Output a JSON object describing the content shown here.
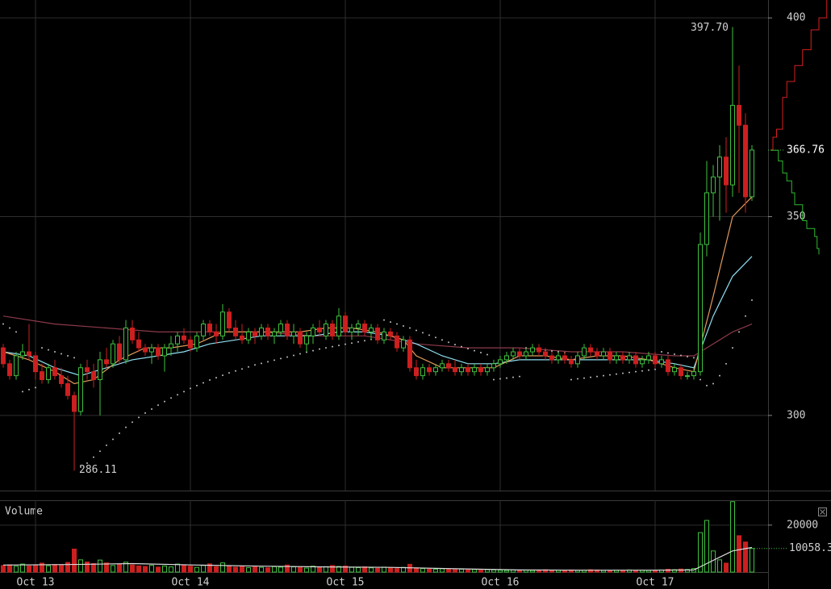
{
  "chart_data": [
    {
      "type": "candlestick",
      "categories": [
        null,
        null,
        null,
        null,
        null,
        "Oct 13",
        null,
        null,
        null,
        null,
        null,
        null,
        null,
        null,
        null,
        null,
        null,
        null,
        null,
        null,
        null,
        null,
        null,
        null,
        null,
        null,
        null,
        null,
        null,
        "Oct 14",
        null,
        null,
        null,
        null,
        null,
        null,
        null,
        null,
        null,
        null,
        null,
        null,
        null,
        null,
        null,
        null,
        null,
        null,
        null,
        null,
        null,
        null,
        null,
        "Oct 15",
        null,
        null,
        null,
        null,
        null,
        null,
        null,
        null,
        null,
        null,
        null,
        null,
        null,
        null,
        null,
        null,
        null,
        null,
        null,
        null,
        null,
        null,
        null,
        "Oct 16",
        null,
        null,
        null,
        null,
        null,
        null,
        null,
        null,
        null,
        null,
        null,
        null,
        null,
        null,
        null,
        null,
        null,
        null,
        null,
        null,
        null,
        null,
        null,
        "Oct 17",
        null,
        null,
        null,
        null,
        null,
        null,
        null,
        null,
        null,
        null,
        null,
        null,
        null,
        null,
        null
      ],
      "open": [
        317,
        313,
        310,
        315,
        316,
        315,
        311,
        309,
        312,
        310,
        308,
        305,
        301,
        312,
        311,
        309,
        314,
        313,
        318,
        314,
        322,
        319,
        317,
        316,
        317,
        315,
        317,
        318,
        320,
        319,
        317,
        320,
        323,
        321,
        320,
        326,
        322,
        320,
        319,
        321,
        320,
        322,
        320,
        321,
        323,
        320,
        321,
        318,
        320,
        322,
        320,
        323,
        320,
        325,
        321,
        322,
        323,
        321,
        322,
        319,
        321,
        320,
        317,
        319,
        312,
        310,
        312,
        311,
        312,
        313,
        312,
        311,
        312,
        311,
        312,
        311,
        312,
        313,
        314,
        315,
        316,
        315,
        316,
        317,
        316,
        315,
        314,
        315,
        314,
        313,
        315,
        317,
        316,
        315,
        316,
        314,
        315,
        314,
        315,
        313,
        314,
        315,
        313,
        314,
        311,
        312,
        310,
        310,
        311,
        343,
        356,
        360,
        365,
        358,
        378,
        373,
        355
      ],
      "high": [
        318,
        314,
        316,
        318,
        323,
        316,
        313,
        313,
        314,
        312,
        310,
        306,
        313,
        314,
        313,
        316,
        317,
        319,
        320,
        324,
        324,
        321,
        318,
        318,
        318,
        318,
        320,
        321,
        322,
        320,
        321,
        324,
        324,
        323,
        328,
        327,
        324,
        323,
        322,
        322,
        323,
        323,
        322,
        324,
        324,
        323,
        322,
        321,
        323,
        324,
        324,
        324,
        327,
        326,
        323,
        324,
        324,
        323,
        323,
        322,
        322,
        321,
        320,
        320,
        314,
        313,
        313,
        313,
        314,
        314,
        314,
        313,
        313,
        313,
        313,
        313,
        314,
        315,
        316,
        317,
        317,
        317,
        318,
        318,
        317,
        316,
        316,
        316,
        315,
        316,
        318,
        318,
        317,
        317,
        317,
        316,
        316,
        316,
        316,
        315,
        316,
        316,
        315,
        315,
        313,
        313,
        311,
        312,
        346,
        364,
        363,
        368,
        370,
        397.7,
        388,
        376,
        368
      ],
      "low": [
        312,
        309,
        309,
        314,
        314,
        309,
        308,
        308,
        309,
        307,
        304,
        286.11,
        300,
        309,
        307,
        300,
        312,
        312,
        313,
        313,
        318,
        316,
        315,
        313,
        314,
        311,
        315,
        316,
        318,
        316,
        316,
        319,
        320,
        318,
        319,
        321,
        319,
        318,
        318,
        318,
        319,
        319,
        318,
        320,
        319,
        318,
        317,
        316,
        318,
        320,
        319,
        319,
        319,
        320,
        319,
        320,
        320,
        319,
        318,
        318,
        319,
        316,
        316,
        311,
        309,
        309,
        310,
        310,
        311,
        311,
        310,
        310,
        310,
        310,
        310,
        310,
        311,
        312,
        313,
        314,
        314,
        314,
        315,
        315,
        314,
        313,
        313,
        313,
        312,
        312,
        314,
        315,
        314,
        314,
        313,
        313,
        313,
        313,
        312,
        312,
        313,
        312,
        312,
        310,
        310,
        309,
        309,
        309,
        310,
        340,
        350,
        349,
        351,
        355,
        356,
        351,
        354
      ],
      "close": [
        313,
        310,
        315,
        316,
        315,
        311,
        309,
        312,
        310,
        308,
        305,
        301,
        312,
        311,
        309,
        314,
        313,
        318,
        314,
        322,
        319,
        317,
        316,
        317,
        315,
        317,
        318,
        320,
        319,
        317,
        320,
        323,
        321,
        320,
        326,
        322,
        320,
        319,
        321,
        320,
        322,
        320,
        321,
        323,
        320,
        321,
        318,
        320,
        322,
        321,
        323,
        320,
        325,
        321,
        322,
        323,
        321,
        322,
        319,
        321,
        320,
        317,
        319,
        312,
        310,
        312,
        311,
        312,
        313,
        312,
        311,
        312,
        311,
        312,
        311,
        312,
        313,
        314,
        315,
        316,
        315,
        316,
        317,
        316,
        315,
        314,
        315,
        314,
        313,
        315,
        317,
        316,
        315,
        316,
        314,
        315,
        314,
        315,
        313,
        314,
        315,
        313,
        314,
        311,
        312,
        310,
        310,
        311,
        343,
        356,
        360,
        365,
        358,
        378,
        373,
        355,
        366.76
      ],
      "sar": [
        323,
        322,
        321,
        306,
        306.5,
        307,
        317,
        316.5,
        316,
        315.5,
        315,
        314.5,
        287,
        288,
        289.5,
        291,
        292.5,
        294,
        295.5,
        297,
        298.3,
        299.5,
        300.6,
        301.6,
        302.6,
        303.5,
        304.4,
        305.2,
        306,
        306.8,
        307.5,
        308.2,
        308.9,
        309.5,
        310.1,
        310.7,
        311.2,
        311.7,
        312.2,
        312.7,
        313.1,
        313.5,
        313.9,
        314.3,
        314.7,
        315.1,
        315.5,
        315.9,
        316.3,
        316.7,
        317,
        317.3,
        317.6,
        317.9,
        318.2,
        318.5,
        318.8,
        319.1,
        319.4,
        324,
        323.5,
        323,
        322.5,
        322,
        321.4,
        320.8,
        320.2,
        319.6,
        319,
        318.4,
        317.8,
        317.3,
        316.8,
        316.3,
        315.8,
        315.3,
        309,
        309.2,
        309.4,
        309.6,
        309.8,
        317,
        316.8,
        316.6,
        316.4,
        316.2,
        316,
        315.8,
        309,
        309.2,
        309.4,
        309.6,
        309.8,
        310,
        310.2,
        310.4,
        310.6,
        310.8,
        311,
        311.2,
        311.4,
        311.6,
        316,
        315.7,
        315.4,
        315.1,
        314.8,
        314.5,
        309,
        307.5,
        308,
        310,
        313,
        317,
        321,
        325,
        329
      ],
      "sar_color": "#bdbdbd",
      "up_color": "#3fc23f",
      "down_color": "#cc1f1f",
      "overlays": [
        {
          "color": "#8c3a4a",
          "x": [
            0,
            8,
            16,
            24,
            32,
            40,
            48,
            56,
            64,
            72,
            80,
            88,
            96,
            104,
            107,
            110,
            113,
            116
          ],
          "values": [
            325,
            323,
            322,
            321,
            321,
            321,
            320,
            320,
            318,
            317,
            317,
            316,
            316,
            315,
            315,
            318,
            321,
            323
          ]
        },
        {
          "color": "#8fe0f2",
          "x": [
            0,
            4,
            8,
            12,
            16,
            20,
            24,
            28,
            32,
            36,
            40,
            44,
            48,
            52,
            56,
            60,
            64,
            68,
            72,
            76,
            80,
            84,
            88,
            92,
            96,
            100,
            104,
            107,
            110,
            113,
            116
          ],
          "values": [
            316,
            315,
            312,
            310,
            312,
            314,
            315,
            316,
            318,
            319,
            320,
            320,
            320,
            321,
            321,
            320,
            318,
            315,
            313,
            313,
            314,
            314,
            314,
            314,
            314,
            314,
            313,
            312,
            325,
            335,
            340
          ]
        },
        {
          "color": "#e39b5c",
          "x": [
            0,
            4,
            8,
            11,
            14,
            18,
            22,
            26,
            30,
            34,
            38,
            42,
            46,
            50,
            54,
            58,
            62,
            64,
            68,
            72,
            76,
            80,
            84,
            88,
            92,
            96,
            100,
            104,
            107,
            110,
            113,
            116
          ],
          "values": [
            316,
            314,
            311,
            308,
            309,
            314,
            317,
            317,
            318,
            321,
            321,
            321,
            321,
            322,
            322,
            321,
            319,
            315,
            312,
            312,
            312,
            315,
            315,
            314,
            315,
            315,
            314,
            312,
            311,
            330,
            350,
            355
          ]
        }
      ],
      "max_label": "397.70",
      "ylim": [
        281.1,
        404.5
      ],
      "yticks": [
        300,
        350,
        400
      ],
      "grid": true,
      "depth": {
        "xlim": [
          0,
          100
        ],
        "asks": {
          "color": "#d42020",
          "x": [
            0,
            4,
            10,
            20,
            27,
            40,
            53,
            67,
            80,
            93
          ],
          "values": [
            366.8,
            370,
            372,
            380,
            384,
            388,
            392,
            397,
            400,
            404.5
          ]
        },
        "bids": {
          "color": "#2fb82f",
          "x": [
            0,
            13,
            20,
            27,
            35,
            40,
            53,
            60,
            73,
            77,
            80
          ],
          "values": [
            366.7,
            364,
            361,
            359,
            356,
            353,
            349,
            347,
            345,
            342,
            340.5
          ]
        }
      }
    },
    {
      "type": "bar",
      "title": "Volume",
      "values": [
        2800,
        3100,
        2500,
        3400,
        2600,
        3000,
        3800,
        2700,
        3200,
        2900,
        4100,
        9800,
        5200,
        4300,
        3600,
        5100,
        3900,
        2800,
        3300,
        4200,
        3000,
        2600,
        2400,
        2900,
        2100,
        2600,
        2200,
        3400,
        3000,
        2500,
        2000,
        2800,
        3500,
        2300,
        3900,
        2600,
        2100,
        2400,
        1900,
        2200,
        2000,
        1800,
        2300,
        2100,
        3000,
        2200,
        1900,
        1700,
        2500,
        2100,
        2300,
        2800,
        2400,
        2600,
        2000,
        1900,
        2200,
        1800,
        1600,
        2100,
        1700,
        1500,
        2000,
        3300,
        1800,
        1500,
        1300,
        1200,
        1400,
        1100,
        1000,
        1200,
        900,
        1100,
        800,
        1000,
        900,
        800,
        700,
        900,
        600,
        800,
        700,
        900,
        1000,
        700,
        800,
        600,
        900,
        700,
        800,
        1000,
        900,
        700,
        600,
        800,
        700,
        900,
        600,
        800,
        700,
        800,
        900,
        1200,
        1000,
        1300,
        1100,
        1500,
        16800,
        22000,
        9000,
        5200,
        3800,
        30000,
        15500,
        12800,
        10058.3
      ],
      "overlay": {
        "color": "#dddddd",
        "x": [
          0,
          10,
          20,
          30,
          40,
          50,
          60,
          70,
          80,
          90,
          100,
          107,
          110,
          113,
          116
        ],
        "values": [
          3000,
          3200,
          3600,
          3000,
          2500,
          2200,
          2000,
          1400,
          900,
          800,
          800,
          900,
          5000,
          9000,
          10500
        ]
      },
      "ylim": [
        0,
        30600
      ],
      "yticks": [
        20000
      ],
      "grid": true
    }
  ]
}
